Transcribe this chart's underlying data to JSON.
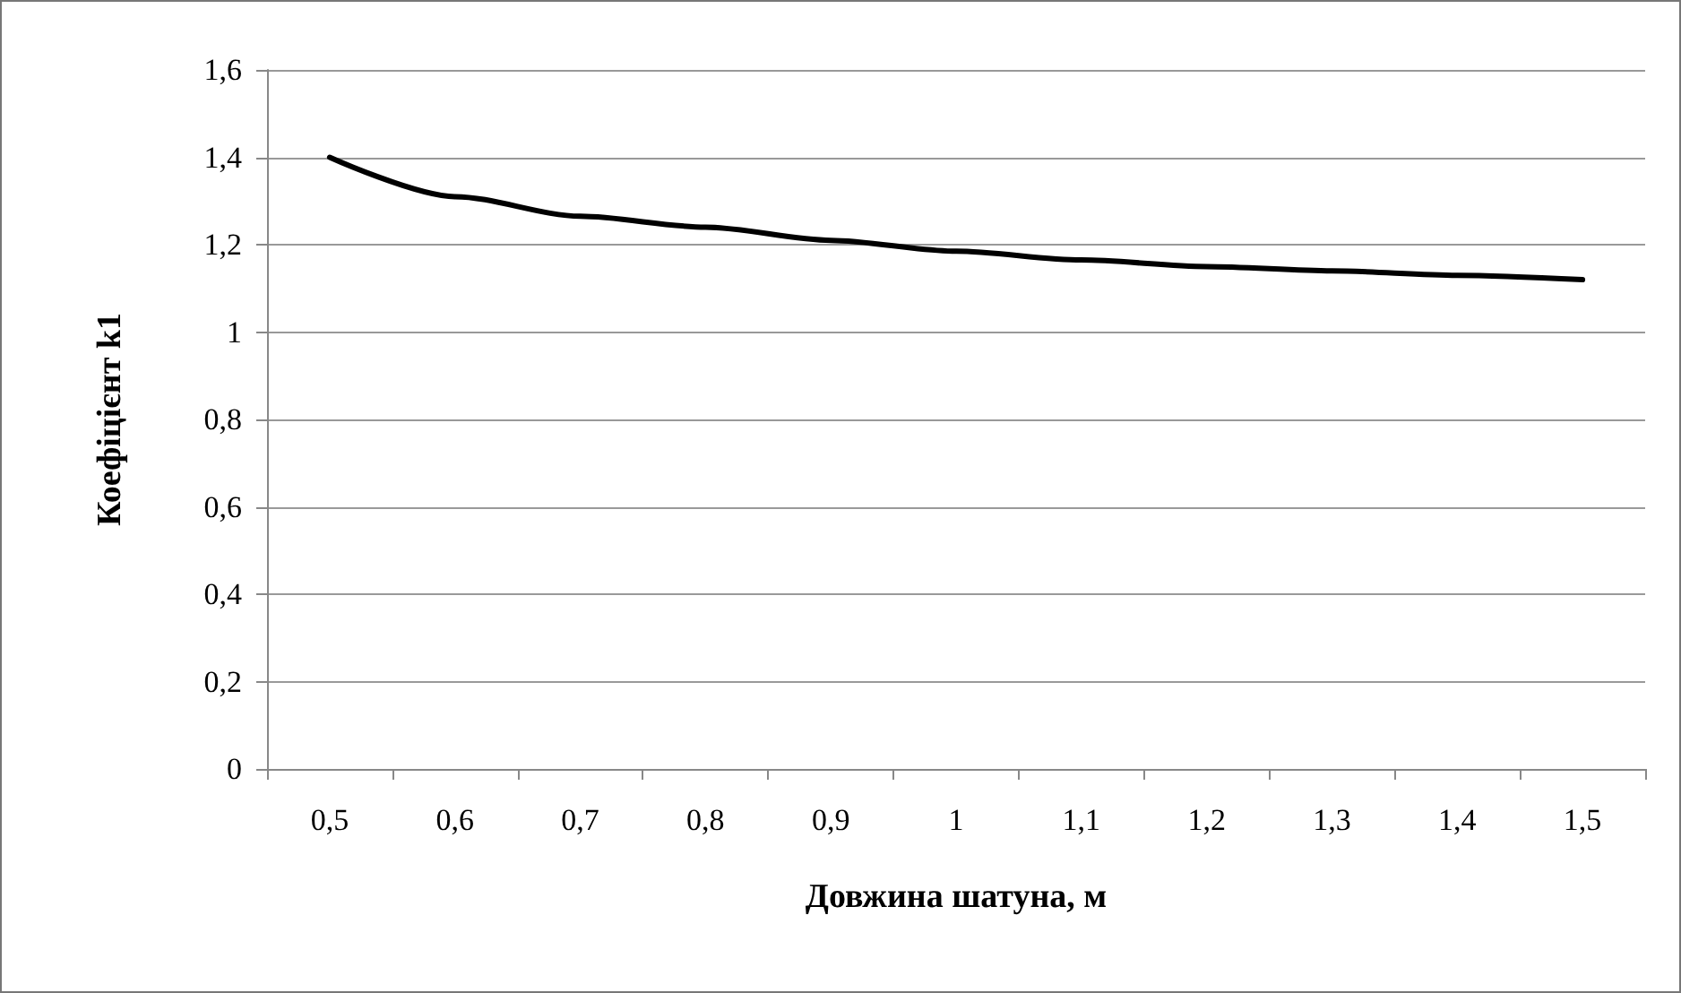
{
  "chart_data": {
    "type": "line",
    "xlabel": "Довжина шатуна, м",
    "ylabel": "Коефіцієнт k1",
    "categories": [
      "0,5",
      "0,6",
      "0,7",
      "0,8",
      "0,9",
      "1",
      "1,1",
      "1,2",
      "1,3",
      "1,4",
      "1,5"
    ],
    "series": [
      {
        "color": "#000000",
        "values": [
          1.4,
          1.31,
          1.265,
          1.24,
          1.21,
          1.185,
          1.165,
          1.15,
          1.14,
          1.13,
          1.12
        ]
      }
    ],
    "ylim": [
      0,
      1.6
    ],
    "yticks": [
      {
        "value": 0,
        "label": "0"
      },
      {
        "value": 0.2,
        "label": "0,2"
      },
      {
        "value": 0.4,
        "label": "0,4"
      },
      {
        "value": 0.6,
        "label": "0,6"
      },
      {
        "value": 0.8,
        "label": "0,8"
      },
      {
        "value": 1,
        "label": "1"
      },
      {
        "value": 1.2,
        "label": "1,2"
      },
      {
        "value": 1.4,
        "label": "1,4"
      },
      {
        "value": 1.6,
        "label": "1,6"
      }
    ],
    "grid": "y",
    "marker": "none",
    "line_style": "solid"
  }
}
